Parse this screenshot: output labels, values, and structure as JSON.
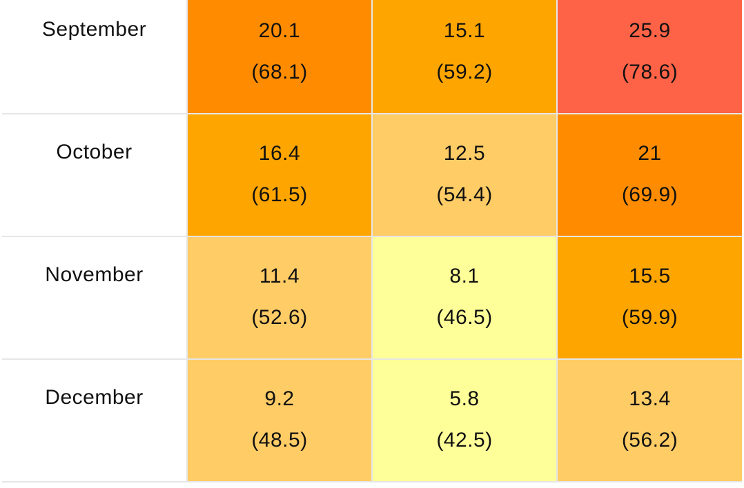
{
  "table": {
    "rows": [
      {
        "month": "September",
        "cells": [
          {
            "c": "20.1",
            "f": "(68.1)",
            "color": "#ff8c00"
          },
          {
            "c": "15.1",
            "f": "(59.2)",
            "color": "#ffa500"
          },
          {
            "c": "25.9",
            "f": "(78.6)",
            "color": "#ff6347"
          }
        ]
      },
      {
        "month": "October",
        "cells": [
          {
            "c": "16.4",
            "f": "(61.5)",
            "color": "#ffa500"
          },
          {
            "c": "12.5",
            "f": "(54.4)",
            "color": "#ffcc66"
          },
          {
            "c": "21",
            "f": "(69.9)",
            "color": "#ff8c00"
          }
        ]
      },
      {
        "month": "November",
        "cells": [
          {
            "c": "11.4",
            "f": "(52.6)",
            "color": "#ffcc66"
          },
          {
            "c": "8.1",
            "f": "(46.5)",
            "color": "#ffff99"
          },
          {
            "c": "15.5",
            "f": "(59.9)",
            "color": "#ffa500"
          }
        ]
      },
      {
        "month": "December",
        "cells": [
          {
            "c": "9.2",
            "f": "(48.5)",
            "color": "#ffcc66"
          },
          {
            "c": "5.8",
            "f": "(42.5)",
            "color": "#ffff99"
          },
          {
            "c": "13.4",
            "f": "(56.2)",
            "color": "#ffcc66"
          }
        ]
      }
    ]
  }
}
